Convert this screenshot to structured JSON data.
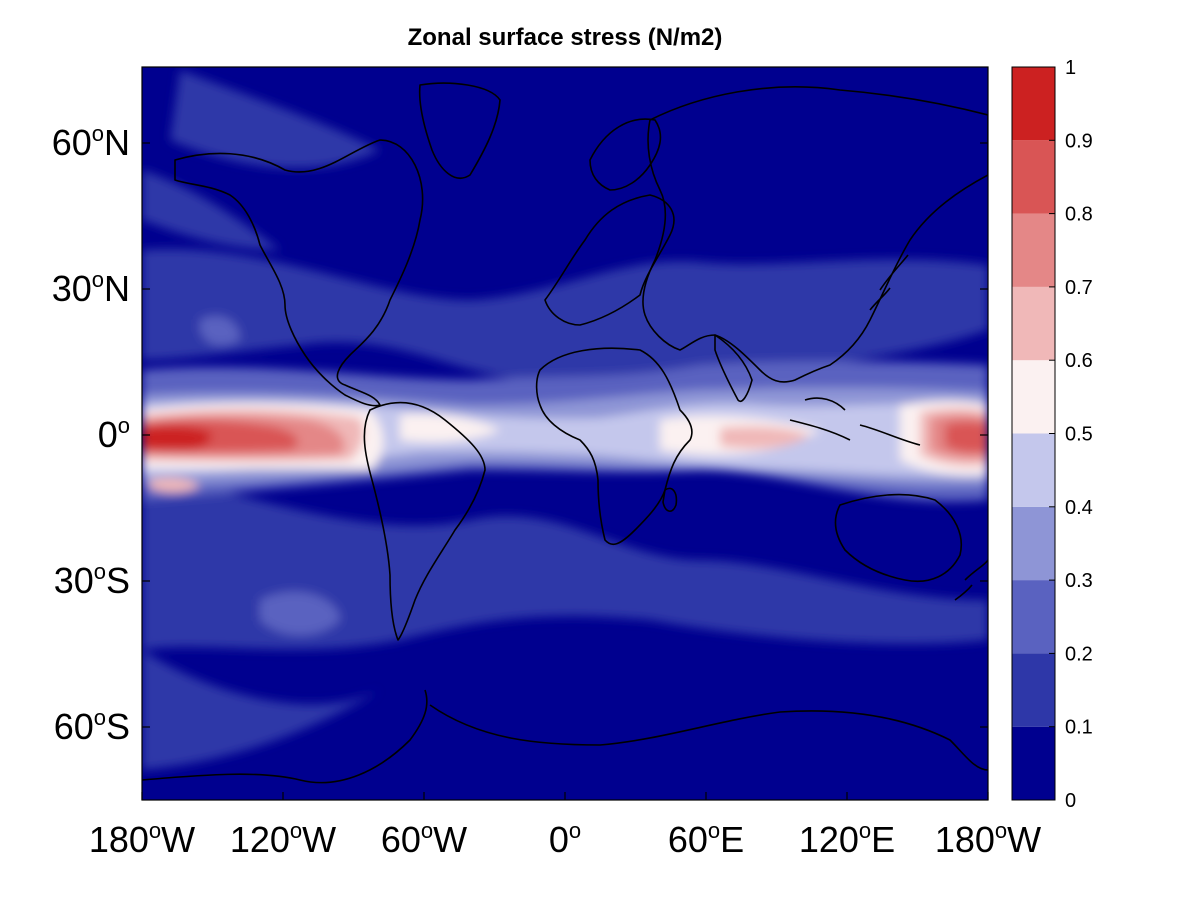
{
  "title": "Zonal surface stress (N/m2)",
  "map": {
    "projection": "equirectangular",
    "lon_range": [
      -180,
      180
    ],
    "lat_range": [
      -90,
      90
    ],
    "coastlines": true,
    "lat_ticks": [
      {
        "lat": 60,
        "base": "60",
        "sup": "o",
        "suffix": "N"
      },
      {
        "lat": 30,
        "base": "30",
        "sup": "o",
        "suffix": "N"
      },
      {
        "lat": 0,
        "base": "0",
        "sup": "o",
        "suffix": ""
      },
      {
        "lat": -30,
        "base": "30",
        "sup": "o",
        "suffix": "S"
      },
      {
        "lat": -60,
        "base": "60",
        "sup": "o",
        "suffix": "S"
      }
    ],
    "lon_ticks": [
      {
        "lon": -180,
        "base": "180",
        "sup": "o",
        "suffix": "W"
      },
      {
        "lon": -120,
        "base": "120",
        "sup": "o",
        "suffix": "W"
      },
      {
        "lon": -60,
        "base": "60",
        "sup": "o",
        "suffix": "W"
      },
      {
        "lon": 0,
        "base": "0",
        "sup": "o",
        "suffix": ""
      },
      {
        "lon": 60,
        "base": "60",
        "sup": "o",
        "suffix": "E"
      },
      {
        "lon": 120,
        "base": "120",
        "sup": "o",
        "suffix": "E"
      },
      {
        "lon": 180,
        "base": "180",
        "sup": "o",
        "suffix": "W"
      }
    ]
  },
  "colorbar": {
    "ticks": [
      "0",
      "0.1",
      "0.2",
      "0.3",
      "0.4",
      "0.5",
      "0.6",
      "0.7",
      "0.8",
      "0.9",
      "1"
    ],
    "range": [
      0,
      1
    ],
    "levels": [
      {
        "from": 0.0,
        "to": 0.1,
        "color": "#00008f"
      },
      {
        "from": 0.1,
        "to": 0.2,
        "color": "#2e37a8"
      },
      {
        "from": 0.2,
        "to": 0.3,
        "color": "#5a62c0"
      },
      {
        "from": 0.3,
        "to": 0.4,
        "color": "#8e95d6"
      },
      {
        "from": 0.4,
        "to": 0.5,
        "color": "#c4c7ec"
      },
      {
        "from": 0.5,
        "to": 0.6,
        "color": "#fbf1f1"
      },
      {
        "from": 0.6,
        "to": 0.7,
        "color": "#f0b8b8"
      },
      {
        "from": 0.7,
        "to": 0.8,
        "color": "#e48787"
      },
      {
        "from": 0.8,
        "to": 0.9,
        "color": "#d95555"
      },
      {
        "from": 0.9,
        "to": 1.0,
        "color": "#cc2121"
      }
    ]
  }
}
